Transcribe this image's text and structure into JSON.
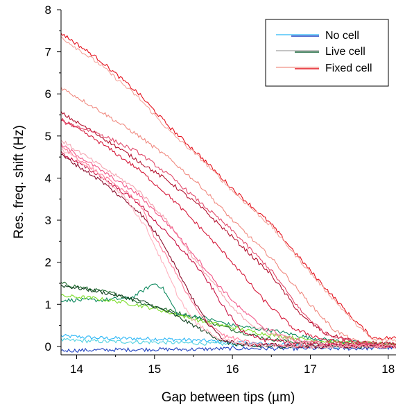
{
  "chart_data": {
    "type": "line",
    "title": "",
    "xlabel": "Gap between tips (µm)",
    "ylabel": "Res. freq. shift (Hz)",
    "xlim": [
      13.8,
      18.1
    ],
    "ylim": [
      -0.2,
      8.0
    ],
    "x_ticks": [
      14,
      15,
      16,
      17,
      18
    ],
    "y_ticks": [
      0,
      1,
      2,
      3,
      4,
      5,
      6,
      7,
      8
    ],
    "grid": false,
    "legend": {
      "position": "top-right",
      "entries": [
        {
          "label": "No cell",
          "colors": [
            "#4fc3f7",
            "#1e3fbf"
          ]
        },
        {
          "label": "Live cell",
          "colors": [
            "#b0b0b0",
            "#0b5d2e"
          ]
        },
        {
          "label": "Fixed cell",
          "colors": [
            "#f4a39a",
            "#e4101c"
          ]
        }
      ]
    },
    "series": [
      {
        "group": "No cell",
        "color": "#29b6f6",
        "points": [
          [
            13.8,
            0.25
          ],
          [
            14.3,
            0.2
          ],
          [
            15.0,
            0.18
          ],
          [
            15.5,
            0.15
          ],
          [
            16.0,
            0.1
          ],
          [
            16.5,
            0.05
          ],
          [
            17.0,
            0.02
          ],
          [
            17.5,
            0.0
          ],
          [
            18.1,
            0.0
          ]
        ]
      },
      {
        "group": "No cell",
        "color": "#4dd0e1",
        "points": [
          [
            13.8,
            0.15
          ],
          [
            14.3,
            0.12
          ],
          [
            15.0,
            0.1
          ],
          [
            15.5,
            0.08
          ],
          [
            16.0,
            0.05
          ],
          [
            16.5,
            0.02
          ],
          [
            17.0,
            0.0
          ],
          [
            17.5,
            -0.02
          ],
          [
            18.1,
            -0.02
          ]
        ]
      },
      {
        "group": "No cell",
        "color": "#1e3fbf",
        "points": [
          [
            13.8,
            -0.1
          ],
          [
            14.5,
            -0.08
          ],
          [
            15.0,
            -0.07
          ],
          [
            15.5,
            -0.07
          ],
          [
            16.0,
            -0.05
          ],
          [
            16.5,
            -0.05
          ],
          [
            17.0,
            -0.05
          ],
          [
            17.5,
            -0.05
          ],
          [
            18.1,
            -0.03
          ]
        ]
      },
      {
        "group": "Live cell",
        "color": "#1f6b2e",
        "points": [
          [
            13.8,
            1.5
          ],
          [
            14.2,
            1.35
          ],
          [
            14.5,
            1.25
          ],
          [
            14.8,
            1.05
          ],
          [
            15.2,
            0.85
          ],
          [
            15.6,
            0.65
          ],
          [
            16.0,
            0.4
          ],
          [
            16.4,
            0.2
          ],
          [
            16.8,
            0.1
          ],
          [
            17.3,
            0.05
          ],
          [
            18.1,
            0.05
          ]
        ]
      },
      {
        "group": "Live cell",
        "color": "#0f8a5f",
        "points": [
          [
            13.8,
            1.1
          ],
          [
            14.3,
            1.1
          ],
          [
            14.7,
            1.15
          ],
          [
            15.0,
            1.5
          ],
          [
            15.1,
            1.4
          ],
          [
            15.3,
            0.75
          ],
          [
            15.6,
            0.7
          ],
          [
            16.0,
            0.5
          ],
          [
            16.6,
            0.35
          ],
          [
            17.0,
            0.2
          ],
          [
            17.5,
            0.1
          ],
          [
            18.1,
            0.05
          ]
        ]
      },
      {
        "group": "Live cell",
        "color": "#7cdc2a",
        "points": [
          [
            13.8,
            1.2
          ],
          [
            14.2,
            1.15
          ],
          [
            14.6,
            1.05
          ],
          [
            15.0,
            0.9
          ],
          [
            15.3,
            0.75
          ],
          [
            15.6,
            0.6
          ],
          [
            16.0,
            0.45
          ],
          [
            16.4,
            0.3
          ],
          [
            16.8,
            0.2
          ],
          [
            17.3,
            0.1
          ],
          [
            18.1,
            0.05
          ]
        ]
      },
      {
        "group": "Live cell",
        "color": "#0b3d1a",
        "points": [
          [
            13.8,
            1.45
          ],
          [
            14.3,
            1.3
          ],
          [
            14.8,
            1.1
          ],
          [
            15.2,
            0.8
          ],
          [
            15.6,
            0.4
          ],
          [
            15.9,
            0.1
          ],
          [
            16.2,
            0.0
          ],
          [
            16.8,
            0.0
          ],
          [
            17.5,
            0.0
          ],
          [
            18.1,
            0.0
          ]
        ]
      },
      {
        "group": "Fixed cell",
        "color": "#e4101c",
        "points": [
          [
            13.8,
            7.45
          ],
          [
            14.3,
            6.8
          ],
          [
            14.8,
            6.0
          ],
          [
            15.2,
            5.2
          ],
          [
            15.6,
            4.5
          ],
          [
            16.0,
            3.75
          ],
          [
            16.5,
            2.9
          ],
          [
            17.0,
            1.8
          ],
          [
            17.5,
            0.75
          ],
          [
            17.8,
            0.2
          ],
          [
            18.1,
            0.2
          ]
        ]
      },
      {
        "group": "Fixed cell",
        "color": "#f4a39a",
        "points": [
          [
            13.8,
            7.35
          ],
          [
            14.3,
            6.7
          ],
          [
            14.8,
            5.9
          ],
          [
            15.2,
            5.1
          ],
          [
            15.6,
            4.45
          ],
          [
            16.0,
            3.7
          ],
          [
            16.5,
            2.85
          ],
          [
            17.0,
            1.75
          ],
          [
            17.5,
            0.7
          ],
          [
            17.8,
            0.15
          ],
          [
            18.1,
            0.15
          ]
        ]
      },
      {
        "group": "Fixed cell",
        "color": "#f08a80",
        "points": [
          [
            13.8,
            6.15
          ],
          [
            14.3,
            5.6
          ],
          [
            14.8,
            5.0
          ],
          [
            15.2,
            4.45
          ],
          [
            15.6,
            3.8
          ],
          [
            16.0,
            3.0
          ],
          [
            16.5,
            2.1
          ],
          [
            17.0,
            1.0
          ],
          [
            17.3,
            0.4
          ],
          [
            17.6,
            0.1
          ],
          [
            18.1,
            0.05
          ]
        ]
      },
      {
        "group": "Fixed cell",
        "color": "#b3122f",
        "points": [
          [
            13.8,
            5.55
          ],
          [
            14.3,
            5.0
          ],
          [
            14.8,
            4.4
          ],
          [
            15.2,
            3.9
          ],
          [
            15.6,
            3.3
          ],
          [
            16.0,
            2.6
          ],
          [
            16.5,
            1.7
          ],
          [
            16.9,
            0.7
          ],
          [
            17.2,
            0.3
          ],
          [
            17.6,
            0.1
          ],
          [
            18.1,
            0.05
          ]
        ]
      },
      {
        "group": "Fixed cell",
        "color": "#d51a3a",
        "points": [
          [
            13.8,
            5.4
          ],
          [
            14.3,
            4.85
          ],
          [
            14.8,
            4.2
          ],
          [
            15.2,
            3.55
          ],
          [
            15.6,
            2.8
          ],
          [
            16.0,
            2.0
          ],
          [
            16.4,
            1.1
          ],
          [
            16.8,
            0.4
          ],
          [
            17.2,
            0.15
          ],
          [
            17.6,
            0.05
          ],
          [
            18.1,
            0.0
          ]
        ]
      },
      {
        "group": "Fixed cell",
        "color": "#e14a6b",
        "points": [
          [
            13.8,
            5.35
          ],
          [
            14.3,
            5.05
          ],
          [
            14.8,
            4.6
          ],
          [
            15.2,
            4.05
          ],
          [
            15.6,
            3.4
          ],
          [
            16.0,
            2.75
          ],
          [
            16.5,
            1.8
          ],
          [
            16.9,
            0.8
          ],
          [
            17.2,
            0.3
          ],
          [
            17.6,
            0.1
          ],
          [
            18.1,
            0.0
          ]
        ]
      },
      {
        "group": "Fixed cell",
        "color": "#f4a3b0",
        "points": [
          [
            13.8,
            4.9
          ],
          [
            14.3,
            4.3
          ],
          [
            14.8,
            3.7
          ],
          [
            15.2,
            2.9
          ],
          [
            15.5,
            2.1
          ],
          [
            15.8,
            1.4
          ],
          [
            16.0,
            0.9
          ],
          [
            16.3,
            0.45
          ],
          [
            16.7,
            0.15
          ],
          [
            17.2,
            0.05
          ],
          [
            18.1,
            0.0
          ]
        ]
      },
      {
        "group": "Fixed cell",
        "color": "#f25a8a",
        "points": [
          [
            13.8,
            4.8
          ],
          [
            14.3,
            4.2
          ],
          [
            14.8,
            3.6
          ],
          [
            15.2,
            2.85
          ],
          [
            15.5,
            2.2
          ],
          [
            15.8,
            1.5
          ],
          [
            16.1,
            0.9
          ],
          [
            16.4,
            0.45
          ],
          [
            16.8,
            0.15
          ],
          [
            17.3,
            0.05
          ],
          [
            18.1,
            0.0
          ]
        ]
      },
      {
        "group": "Fixed cell",
        "color": "#c91646",
        "points": [
          [
            13.8,
            4.6
          ],
          [
            14.3,
            4.05
          ],
          [
            14.8,
            3.4
          ],
          [
            15.2,
            2.6
          ],
          [
            15.5,
            2.0
          ],
          [
            15.7,
            1.5
          ],
          [
            15.9,
            0.9
          ],
          [
            16.1,
            0.4
          ],
          [
            16.4,
            0.15
          ],
          [
            17.0,
            0.05
          ],
          [
            18.1,
            0.0
          ]
        ]
      },
      {
        "group": "Fixed cell",
        "color": "#ff7a9a",
        "points": [
          [
            13.8,
            4.75
          ],
          [
            14.3,
            4.1
          ],
          [
            14.8,
            3.45
          ],
          [
            15.0,
            2.6
          ],
          [
            15.2,
            2.0
          ],
          [
            15.4,
            1.3
          ],
          [
            15.6,
            0.7
          ],
          [
            15.9,
            0.25
          ],
          [
            16.3,
            0.05
          ],
          [
            17.0,
            0.0
          ],
          [
            18.1,
            0.0
          ]
        ]
      },
      {
        "group": "Fixed cell",
        "color": "#8c0f2e",
        "points": [
          [
            13.8,
            4.55
          ],
          [
            14.3,
            3.95
          ],
          [
            14.8,
            3.2
          ],
          [
            15.1,
            2.5
          ],
          [
            15.3,
            1.8
          ],
          [
            15.5,
            1.1
          ],
          [
            15.7,
            0.5
          ],
          [
            15.9,
            0.15
          ],
          [
            16.2,
            0.05
          ],
          [
            17.0,
            0.0
          ],
          [
            18.1,
            0.0
          ]
        ]
      },
      {
        "group": "Fixed cell",
        "color": "#ffb3c0",
        "points": [
          [
            13.8,
            4.7
          ],
          [
            14.2,
            4.2
          ],
          [
            14.6,
            3.6
          ],
          [
            14.9,
            2.8
          ],
          [
            15.1,
            2.0
          ],
          [
            15.3,
            1.2
          ],
          [
            15.5,
            0.6
          ],
          [
            15.8,
            0.2
          ],
          [
            16.2,
            0.05
          ],
          [
            17.0,
            0.0
          ],
          [
            18.1,
            0.0
          ]
        ]
      }
    ]
  }
}
